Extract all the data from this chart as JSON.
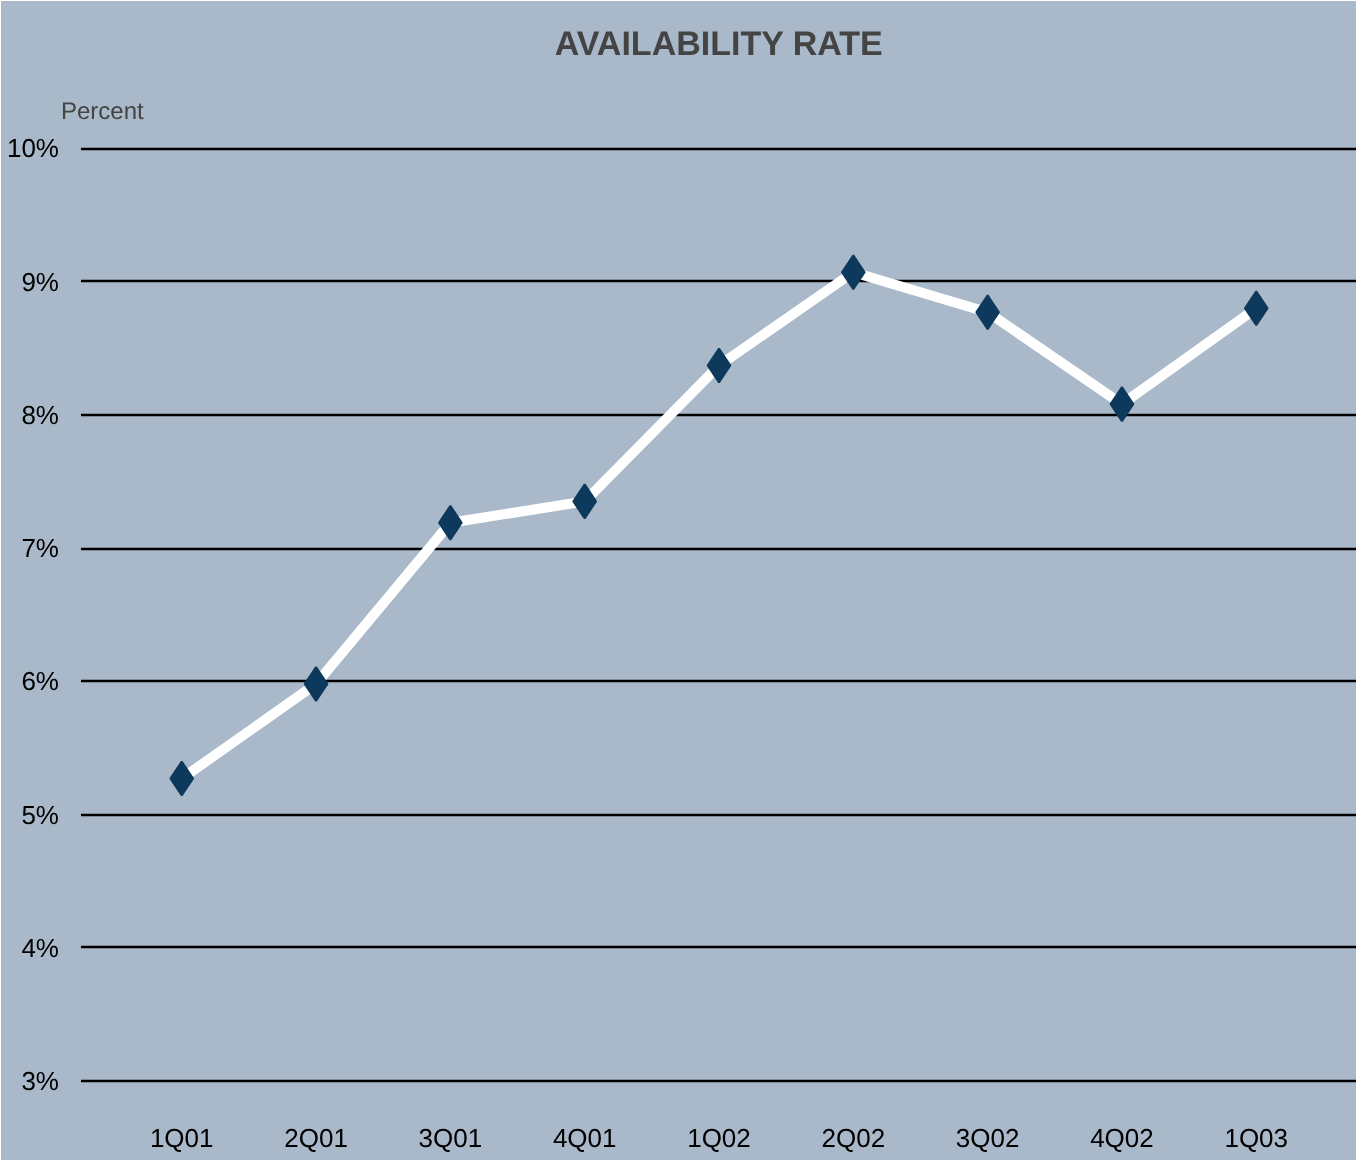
{
  "chart_data": {
    "type": "line",
    "title": "AVAILABILITY RATE",
    "ylabel": "Percent",
    "categories": [
      "1Q01",
      "2Q01",
      "3Q01",
      "4Q01",
      "1Q02",
      "2Q02",
      "3Q02",
      "4Q02",
      "1Q03"
    ],
    "series": [
      {
        "color": "#ffffff",
        "values": [
          5.27,
          5.98,
          7.19,
          7.35,
          8.37,
          9.07,
          8.77,
          8.08,
          8.8
        ]
      }
    ],
    "marker": "diamond",
    "line_style": "solid",
    "ylim": [
      2.85,
      10.1
    ],
    "yticks": [
      {
        "value": 3,
        "label": "3%"
      },
      {
        "value": 4,
        "label": "4%"
      },
      {
        "value": 5,
        "label": "5%"
      },
      {
        "value": 6,
        "label": "6%"
      },
      {
        "value": 7,
        "label": "7%"
      },
      {
        "value": 8,
        "label": "8%"
      },
      {
        "value": 9,
        "label": "9%"
      },
      {
        "value": 10,
        "label": "10%"
      }
    ],
    "grid": "y"
  }
}
